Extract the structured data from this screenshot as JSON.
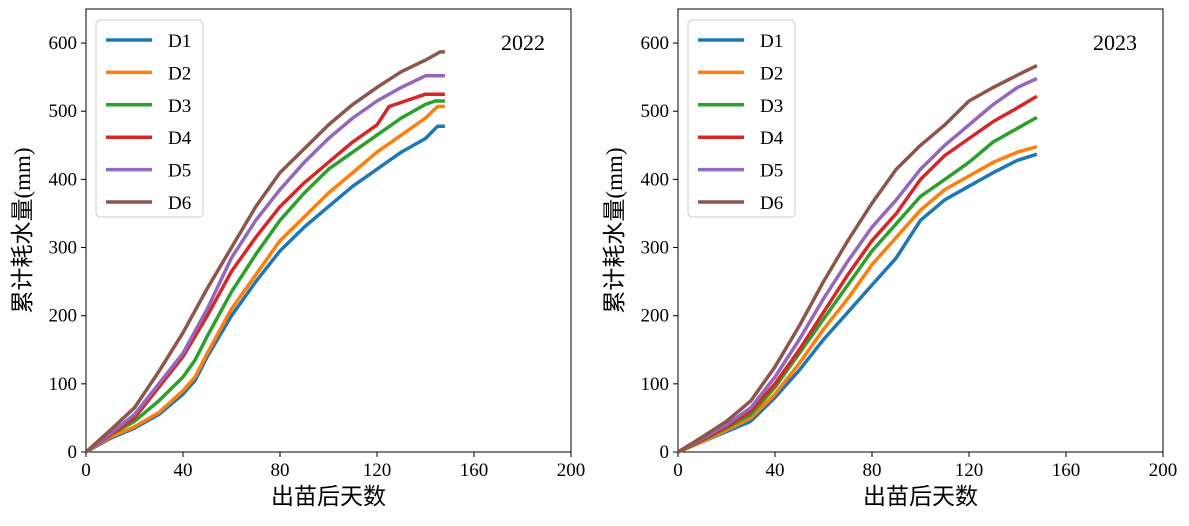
{
  "chart_data": [
    {
      "type": "line",
      "title": "2022",
      "xlabel": "出苗后天数",
      "ylabel": "累计耗水量(mm)",
      "xlim": [
        0,
        200
      ],
      "ylim": [
        0,
        650
      ],
      "xticks": [
        0,
        40,
        80,
        120,
        160,
        200
      ],
      "yticks": [
        0,
        100,
        200,
        300,
        400,
        500,
        600
      ],
      "legend_position": "top-left",
      "series": [
        {
          "name": "D1",
          "color": "#1f77b4",
          "points": [
            [
              0,
              0
            ],
            [
              10,
              20
            ],
            [
              20,
              35
            ],
            [
              30,
              55
            ],
            [
              40,
              85
            ],
            [
              45,
              105
            ],
            [
              50,
              140
            ],
            [
              60,
              200
            ],
            [
              70,
              250
            ],
            [
              80,
              295
            ],
            [
              90,
              330
            ],
            [
              100,
              360
            ],
            [
              110,
              390
            ],
            [
              120,
              415
            ],
            [
              130,
              440
            ],
            [
              140,
              460
            ],
            [
              145,
              478
            ],
            [
              148,
              478
            ]
          ]
        },
        {
          "name": "D2",
          "color": "#ff7f0e",
          "points": [
            [
              0,
              0
            ],
            [
              10,
              22
            ],
            [
              20,
              37
            ],
            [
              30,
              58
            ],
            [
              40,
              90
            ],
            [
              45,
              110
            ],
            [
              50,
              145
            ],
            [
              60,
              210
            ],
            [
              70,
              260
            ],
            [
              80,
              310
            ],
            [
              90,
              345
            ],
            [
              100,
              380
            ],
            [
              110,
              410
            ],
            [
              120,
              440
            ],
            [
              130,
              465
            ],
            [
              140,
              490
            ],
            [
              145,
              507
            ],
            [
              148,
              507
            ]
          ]
        },
        {
          "name": "D3",
          "color": "#2ca02c",
          "points": [
            [
              0,
              0
            ],
            [
              10,
              25
            ],
            [
              20,
              45
            ],
            [
              30,
              75
            ],
            [
              40,
              110
            ],
            [
              45,
              135
            ],
            [
              50,
              170
            ],
            [
              60,
              235
            ],
            [
              70,
              290
            ],
            [
              80,
              340
            ],
            [
              90,
              380
            ],
            [
              100,
              415
            ],
            [
              110,
              440
            ],
            [
              120,
              465
            ],
            [
              130,
              490
            ],
            [
              140,
              510
            ],
            [
              144,
              515
            ],
            [
              148,
              515
            ]
          ]
        },
        {
          "name": "D4",
          "color": "#d62728",
          "points": [
            [
              0,
              0
            ],
            [
              10,
              25
            ],
            [
              20,
              50
            ],
            [
              30,
              95
            ],
            [
              40,
              140
            ],
            [
              50,
              200
            ],
            [
              60,
              265
            ],
            [
              70,
              315
            ],
            [
              80,
              360
            ],
            [
              90,
              395
            ],
            [
              100,
              425
            ],
            [
              110,
              455
            ],
            [
              120,
              480
            ],
            [
              125,
              507
            ],
            [
              140,
              525
            ],
            [
              148,
              525
            ]
          ]
        },
        {
          "name": "D5",
          "color": "#9467bd",
          "points": [
            [
              0,
              0
            ],
            [
              10,
              27
            ],
            [
              20,
              55
            ],
            [
              30,
              100
            ],
            [
              40,
              145
            ],
            [
              50,
              210
            ],
            [
              60,
              285
            ],
            [
              70,
              340
            ],
            [
              80,
              385
            ],
            [
              90,
              425
            ],
            [
              100,
              460
            ],
            [
              110,
              490
            ],
            [
              120,
              515
            ],
            [
              130,
              535
            ],
            [
              140,
              552
            ],
            [
              148,
              552
            ]
          ]
        },
        {
          "name": "D6",
          "color": "#8c564b",
          "points": [
            [
              0,
              0
            ],
            [
              10,
              32
            ],
            [
              20,
              65
            ],
            [
              30,
              118
            ],
            [
              40,
              175
            ],
            [
              50,
              240
            ],
            [
              60,
              300
            ],
            [
              70,
              360
            ],
            [
              80,
              410
            ],
            [
              90,
              445
            ],
            [
              100,
              480
            ],
            [
              110,
              510
            ],
            [
              120,
              535
            ],
            [
              130,
              558
            ],
            [
              140,
              575
            ],
            [
              146,
              587
            ],
            [
              148,
              587
            ]
          ]
        }
      ]
    },
    {
      "type": "line",
      "title": "2023",
      "xlabel": "出苗后天数",
      "ylabel": "累计耗水量(mm)",
      "xlim": [
        0,
        200
      ],
      "ylim": [
        0,
        650
      ],
      "xticks": [
        0,
        40,
        80,
        120,
        160,
        200
      ],
      "yticks": [
        0,
        100,
        200,
        300,
        400,
        500,
        600
      ],
      "legend_position": "top-left",
      "series": [
        {
          "name": "D1",
          "color": "#1f77b4",
          "points": [
            [
              0,
              0
            ],
            [
              10,
              15
            ],
            [
              20,
              30
            ],
            [
              30,
              45
            ],
            [
              40,
              80
            ],
            [
              50,
              120
            ],
            [
              60,
              165
            ],
            [
              70,
              205
            ],
            [
              80,
              245
            ],
            [
              90,
              285
            ],
            [
              100,
              340
            ],
            [
              110,
              370
            ],
            [
              120,
              390
            ],
            [
              130,
              410
            ],
            [
              140,
              428
            ],
            [
              148,
              437
            ]
          ]
        },
        {
          "name": "D2",
          "color": "#ff7f0e",
          "points": [
            [
              0,
              0
            ],
            [
              10,
              15
            ],
            [
              20,
              32
            ],
            [
              30,
              50
            ],
            [
              40,
              85
            ],
            [
              50,
              130
            ],
            [
              60,
              180
            ],
            [
              70,
              225
            ],
            [
              80,
              275
            ],
            [
              90,
              315
            ],
            [
              100,
              355
            ],
            [
              110,
              385
            ],
            [
              120,
              405
            ],
            [
              130,
              425
            ],
            [
              140,
              440
            ],
            [
              148,
              448
            ]
          ]
        },
        {
          "name": "D3",
          "color": "#2ca02c",
          "points": [
            [
              0,
              0
            ],
            [
              10,
              17
            ],
            [
              20,
              35
            ],
            [
              30,
              55
            ],
            [
              40,
              95
            ],
            [
              50,
              145
            ],
            [
              60,
              195
            ],
            [
              70,
              245
            ],
            [
              80,
              295
            ],
            [
              90,
              335
            ],
            [
              100,
              375
            ],
            [
              110,
              400
            ],
            [
              120,
              425
            ],
            [
              130,
              455
            ],
            [
              140,
              475
            ],
            [
              148,
              491
            ]
          ]
        },
        {
          "name": "D4",
          "color": "#d62728",
          "points": [
            [
              0,
              0
            ],
            [
              10,
              18
            ],
            [
              20,
              37
            ],
            [
              30,
              60
            ],
            [
              40,
              100
            ],
            [
              50,
              150
            ],
            [
              60,
              205
            ],
            [
              70,
              260
            ],
            [
              80,
              310
            ],
            [
              90,
              350
            ],
            [
              100,
              400
            ],
            [
              110,
              435
            ],
            [
              120,
              460
            ],
            [
              130,
              485
            ],
            [
              140,
              505
            ],
            [
              148,
              522
            ]
          ]
        },
        {
          "name": "D5",
          "color": "#9467bd",
          "points": [
            [
              0,
              0
            ],
            [
              10,
              20
            ],
            [
              20,
              40
            ],
            [
              30,
              65
            ],
            [
              40,
              110
            ],
            [
              50,
              165
            ],
            [
              60,
              225
            ],
            [
              70,
              280
            ],
            [
              80,
              330
            ],
            [
              90,
              370
            ],
            [
              100,
              415
            ],
            [
              110,
              450
            ],
            [
              120,
              480
            ],
            [
              130,
              510
            ],
            [
              140,
              535
            ],
            [
              148,
              548
            ]
          ]
        },
        {
          "name": "D6",
          "color": "#8c564b",
          "points": [
            [
              0,
              0
            ],
            [
              10,
              22
            ],
            [
              20,
              45
            ],
            [
              30,
              75
            ],
            [
              40,
              125
            ],
            [
              50,
              185
            ],
            [
              60,
              250
            ],
            [
              70,
              310
            ],
            [
              80,
              365
            ],
            [
              90,
              415
            ],
            [
              100,
              450
            ],
            [
              110,
              480
            ],
            [
              120,
              515
            ],
            [
              130,
              535
            ],
            [
              140,
              553
            ],
            [
              148,
              567
            ]
          ]
        }
      ]
    }
  ]
}
